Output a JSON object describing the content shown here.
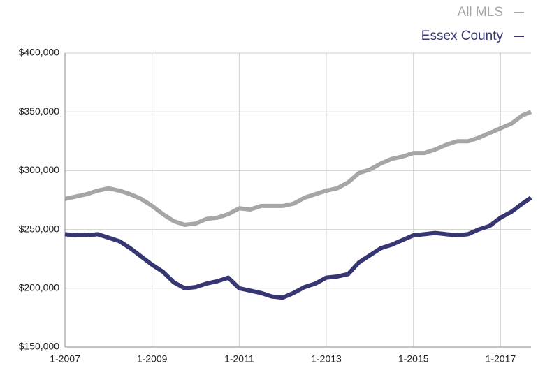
{
  "chart_data": {
    "type": "line",
    "x": [
      2007,
      2007.25,
      2007.5,
      2007.75,
      2008,
      2008.25,
      2008.5,
      2008.75,
      2009,
      2009.25,
      2009.5,
      2009.75,
      2010,
      2010.25,
      2010.5,
      2010.75,
      2011,
      2011.25,
      2011.5,
      2011.75,
      2012,
      2012.25,
      2012.5,
      2012.75,
      2013,
      2013.25,
      2013.5,
      2013.75,
      2014,
      2014.25,
      2014.5,
      2014.75,
      2015,
      2015.25,
      2015.5,
      2015.75,
      2016,
      2016.25,
      2016.5,
      2016.75,
      2017,
      2017.25,
      2017.5,
      2017.7
    ],
    "series": [
      {
        "name": "All MLS",
        "color": "#a6a6a6",
        "values": [
          276000,
          278000,
          280000,
          283000,
          285000,
          283000,
          280000,
          276000,
          270000,
          263000,
          257000,
          254000,
          255000,
          259000,
          260000,
          263000,
          268000,
          267000,
          270000,
          270000,
          270000,
          272000,
          277000,
          280000,
          283000,
          285000,
          290000,
          298000,
          301000,
          306000,
          310000,
          312000,
          315000,
          315000,
          318000,
          322000,
          325000,
          325000,
          328000,
          332000,
          336000,
          340000,
          347000,
          350000
        ]
      },
      {
        "name": "Essex County",
        "color": "#363672",
        "values": [
          246000,
          245000,
          245000,
          246000,
          243000,
          240000,
          234000,
          227000,
          220000,
          214000,
          205000,
          200000,
          201000,
          204000,
          206000,
          209000,
          200000,
          198000,
          196000,
          193000,
          192000,
          196000,
          201000,
          204000,
          209000,
          210000,
          212000,
          222000,
          228000,
          234000,
          237000,
          241000,
          245000,
          246000,
          247000,
          246000,
          245000,
          246000,
          250000,
          253000,
          260000,
          265000,
          272000,
          277000
        ]
      }
    ],
    "xlim": [
      2007,
      2017.7
    ],
    "xticks": [
      {
        "value": 2007,
        "label": "1-2007"
      },
      {
        "value": 2009,
        "label": "1-2009"
      },
      {
        "value": 2011,
        "label": "1-2011"
      },
      {
        "value": 2013,
        "label": "1-2013"
      },
      {
        "value": 2015,
        "label": "1-2015"
      },
      {
        "value": 2017,
        "label": "1-2017"
      }
    ],
    "ylim": [
      150000,
      400000
    ],
    "yticks": [
      {
        "value": 150000,
        "label": "$150,000"
      },
      {
        "value": 200000,
        "label": "$200,000"
      },
      {
        "value": 250000,
        "label": "$250,000"
      },
      {
        "value": 300000,
        "label": "$300,000"
      },
      {
        "value": 350000,
        "label": "$350,000"
      },
      {
        "value": 400000,
        "label": "$400,000"
      }
    ],
    "grid": true,
    "legend": "top-right"
  }
}
